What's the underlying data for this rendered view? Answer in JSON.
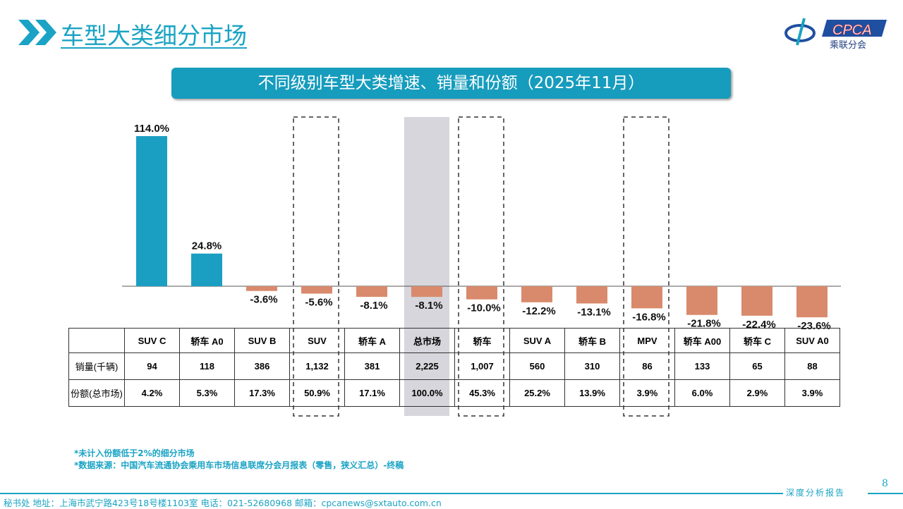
{
  "header": {
    "title": "车型大类细分市场",
    "logo_text": "CPCA",
    "logo_sub": "乘联分会",
    "logo_mark": "CADA"
  },
  "chart_data": {
    "type": "bar",
    "title": "不同级别车型大类增速、销量和份额（2025年11月）",
    "categories": [
      "SUV C",
      "轿车 A0",
      "SUV B",
      "SUV",
      "轿车 A",
      "总市场",
      "轿车",
      "SUV A",
      "轿车 B",
      "MPV",
      "轿车 A00",
      "轿车 C",
      "SUV A0"
    ],
    "values": [
      114.0,
      24.8,
      -3.6,
      -5.6,
      -8.1,
      -8.1,
      -10.0,
      -12.2,
      -13.1,
      -16.8,
      -21.8,
      -22.4,
      -23.6
    ],
    "data_labels": [
      "114.0%",
      "24.8%",
      "-3.6%",
      "-5.6%",
      "-8.1%",
      "-8.1%",
      "-10.0%",
      "-12.2%",
      "-13.1%",
      "-16.8%",
      "-21.8%",
      "-22.4%",
      "-23.6%"
    ],
    "highlighted_dashed": [
      "SUV",
      "轿车",
      "MPV"
    ],
    "highlighted_shaded": [
      "总市场"
    ],
    "colors": {
      "positive": "#1a9fc2",
      "negative": "#d98a6c",
      "shade": "#d6d6dc",
      "accent": "#1aa3c4"
    },
    "table": {
      "rows": [
        {
          "label": "销量(千辆)",
          "values": [
            "94",
            "118",
            "386",
            "1,132",
            "381",
            "2,225",
            "1,007",
            "560",
            "310",
            "86",
            "133",
            "65",
            "88"
          ]
        },
        {
          "label": "份额(总市场)",
          "values": [
            "4.2%",
            "5.3%",
            "17.3%",
            "50.9%",
            "17.1%",
            "100.0%",
            "45.3%",
            "25.2%",
            "13.9%",
            "3.9%",
            "6.0%",
            "2.9%",
            "3.9%"
          ]
        }
      ]
    }
  },
  "notes": [
    "*未计入份额低于2%的细分市场",
    "*数据来源：中国汽车流通协会乘用车市场信息联席分会月报表（零售，狭义汇总）-终稿"
  ],
  "footer": {
    "address": "秘书处   地址：上海市武宁路423号18号楼1103室  电话：021-52680968   邮箱：cpcanews@sxtauto.com.cn",
    "tag": "深度分析报告",
    "page": "8"
  }
}
